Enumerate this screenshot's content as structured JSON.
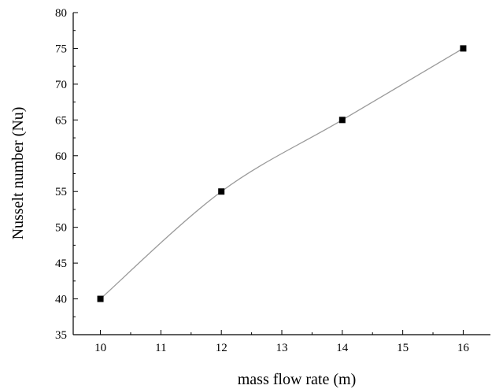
{
  "chart_data": {
    "type": "line",
    "title": "",
    "xlabel": "mass flow rate (m)",
    "ylabel": "Nusselt number (Nu)",
    "xlim": [
      9.55,
      16.45
    ],
    "ylim": [
      35,
      80
    ],
    "x_ticks": [
      10,
      11,
      12,
      13,
      14,
      15,
      16
    ],
    "y_ticks": [
      35,
      40,
      45,
      50,
      55,
      60,
      65,
      70,
      75,
      80
    ],
    "grid": false,
    "legend": "none",
    "series": [
      {
        "color": "#000000",
        "line_color": "#9a9a9a",
        "marker": "square",
        "points": [
          {
            "x": 10,
            "y": 40
          },
          {
            "x": 12,
            "y": 55
          },
          {
            "x": 14,
            "y": 65
          },
          {
            "x": 16,
            "y": 75
          }
        ]
      }
    ]
  }
}
